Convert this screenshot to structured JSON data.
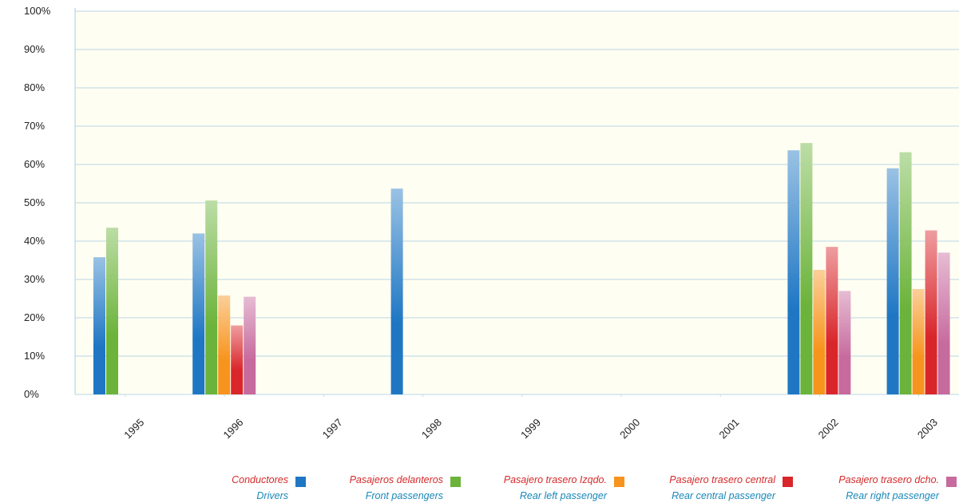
{
  "chart_data": {
    "type": "bar",
    "categories": [
      "1995",
      "1996",
      "1997",
      "1998",
      "1999",
      "2000",
      "2001",
      "2002",
      "2003"
    ],
    "series": [
      {
        "name": "Conductores",
        "name_en": "Drivers",
        "color": "#1f77c4",
        "values": [
          35.8,
          42,
          null,
          53.7,
          null,
          null,
          null,
          63.7,
          59
        ]
      },
      {
        "name": "Pasajeros delanteros",
        "name_en": "Front passengers",
        "color": "#6bb33a",
        "values": [
          43.5,
          50.6,
          null,
          null,
          null,
          null,
          null,
          65.6,
          63.2
        ]
      },
      {
        "name": "Pasajero trasero Izqdo.",
        "name_en": "Rear left passenger",
        "color": "#f7941d",
        "values": [
          null,
          25.8,
          null,
          null,
          null,
          null,
          null,
          32.5,
          27.5
        ]
      },
      {
        "name": "Pasajero trasero central",
        "name_en": "Rear central passenger",
        "color": "#d9262b",
        "values": [
          null,
          18,
          null,
          null,
          null,
          null,
          null,
          38.5,
          42.8
        ]
      },
      {
        "name": "Pasajero trasero dcho.",
        "name_en": "Rear right passenger",
        "color": "#c76a9e",
        "values": [
          null,
          25.5,
          null,
          null,
          null,
          null,
          null,
          27,
          37
        ]
      }
    ],
    "ylim": [
      0,
      100
    ],
    "yticks": [
      "0%",
      "10%",
      "20%",
      "30%",
      "40%",
      "50%",
      "60%",
      "70%",
      "80%",
      "90%",
      "100%"
    ],
    "grid": true,
    "legend_position": "bottom-right",
    "title": "",
    "xlabel": "",
    "ylabel": ""
  }
}
